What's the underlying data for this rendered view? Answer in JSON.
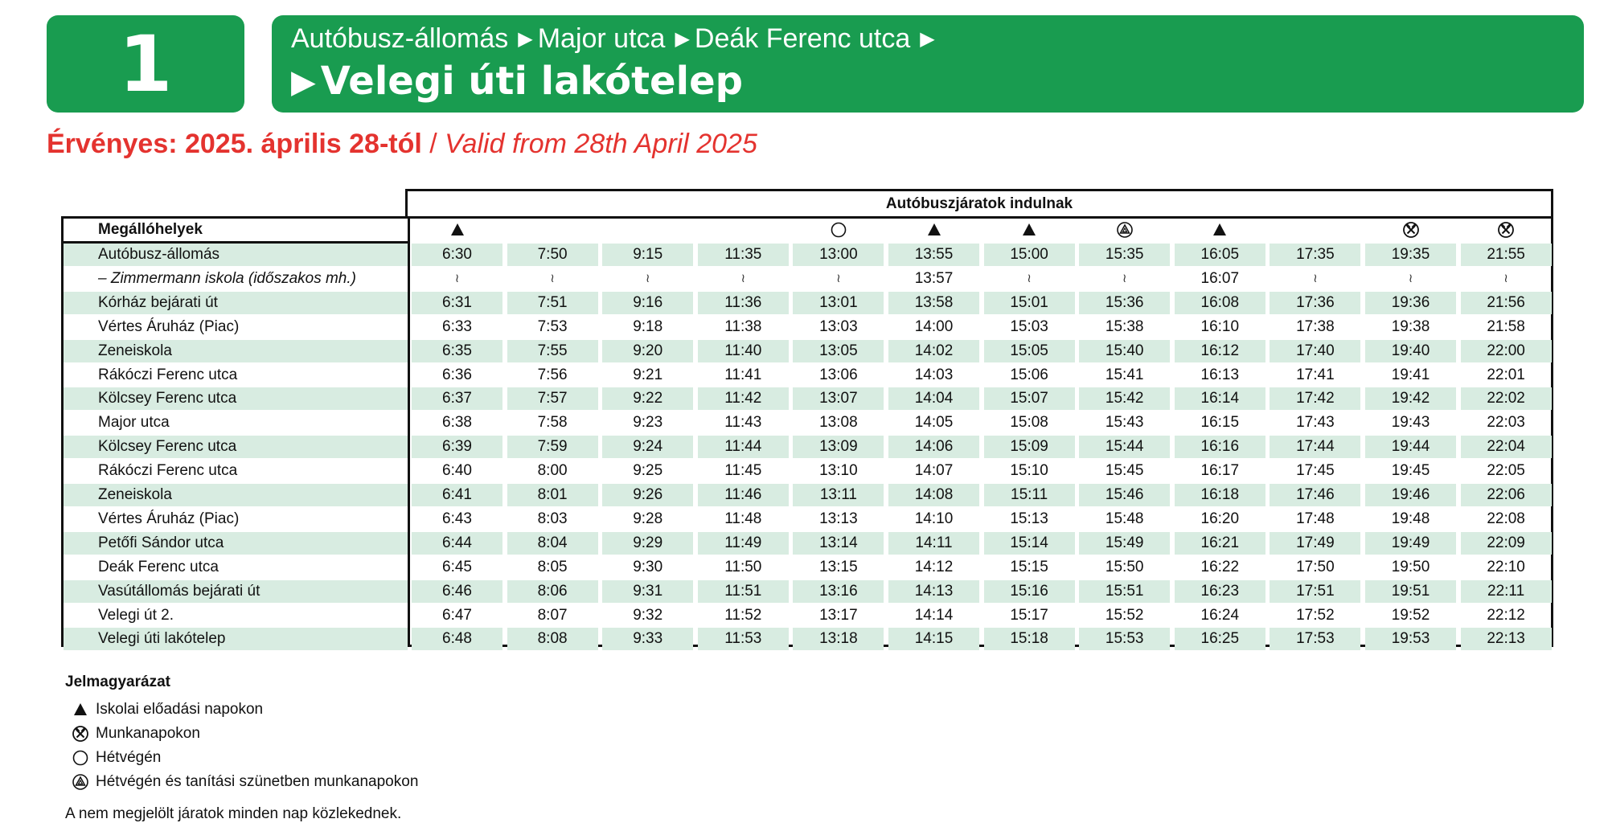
{
  "route_number": "1",
  "route": {
    "stops_via": [
      "Autóbusz-állomás",
      "Major utca",
      "Deák Ferenc utca"
    ],
    "destination": "Velegi úti lakótelep"
  },
  "validity": {
    "hu": "Érvényes: 2025. április 28-tól",
    "separator": " / ",
    "en": "Valid from 28th April 2025"
  },
  "table": {
    "departures_header": "Autóbuszjáratok indulnak",
    "stops_header": "Megállóhelyek",
    "column_symbols": [
      "triangle",
      "",
      "",
      "",
      "circle",
      "triangle",
      "triangle",
      "circle-triangle",
      "triangle",
      "",
      "hammers",
      "hammers"
    ],
    "skip_glyph": "≀",
    "rows": [
      {
        "stop": "Autóbusz-állomás",
        "times": [
          "6:30",
          "7:50",
          "9:15",
          "11:35",
          "13:00",
          "13:55",
          "15:00",
          "15:35",
          "16:05",
          "17:35",
          "19:35",
          "21:55"
        ]
      },
      {
        "stop": "–   Zimmermann iskola (időszakos mh.)",
        "optional": true,
        "times": [
          "",
          "",
          "",
          "",
          "",
          "13:57",
          "",
          "",
          "16:07",
          "",
          "",
          ""
        ]
      },
      {
        "stop": "Kórház bejárati út",
        "times": [
          "6:31",
          "7:51",
          "9:16",
          "11:36",
          "13:01",
          "13:58",
          "15:01",
          "15:36",
          "16:08",
          "17:36",
          "19:36",
          "21:56"
        ]
      },
      {
        "stop": "Vértes Áruház (Piac)",
        "times": [
          "6:33",
          "7:53",
          "9:18",
          "11:38",
          "13:03",
          "14:00",
          "15:03",
          "15:38",
          "16:10",
          "17:38",
          "19:38",
          "21:58"
        ]
      },
      {
        "stop": "Zeneiskola",
        "times": [
          "6:35",
          "7:55",
          "9:20",
          "11:40",
          "13:05",
          "14:02",
          "15:05",
          "15:40",
          "16:12",
          "17:40",
          "19:40",
          "22:00"
        ]
      },
      {
        "stop": "Rákóczi Ferenc utca",
        "times": [
          "6:36",
          "7:56",
          "9:21",
          "11:41",
          "13:06",
          "14:03",
          "15:06",
          "15:41",
          "16:13",
          "17:41",
          "19:41",
          "22:01"
        ]
      },
      {
        "stop": "Kölcsey Ferenc utca",
        "times": [
          "6:37",
          "7:57",
          "9:22",
          "11:42",
          "13:07",
          "14:04",
          "15:07",
          "15:42",
          "16:14",
          "17:42",
          "19:42",
          "22:02"
        ]
      },
      {
        "stop": "Major utca",
        "times": [
          "6:38",
          "7:58",
          "9:23",
          "11:43",
          "13:08",
          "14:05",
          "15:08",
          "15:43",
          "16:15",
          "17:43",
          "19:43",
          "22:03"
        ]
      },
      {
        "stop": "Kölcsey Ferenc utca",
        "times": [
          "6:39",
          "7:59",
          "9:24",
          "11:44",
          "13:09",
          "14:06",
          "15:09",
          "15:44",
          "16:16",
          "17:44",
          "19:44",
          "22:04"
        ]
      },
      {
        "stop": "Rákóczi Ferenc utca",
        "times": [
          "6:40",
          "8:00",
          "9:25",
          "11:45",
          "13:10",
          "14:07",
          "15:10",
          "15:45",
          "16:17",
          "17:45",
          "19:45",
          "22:05"
        ]
      },
      {
        "stop": "Zeneiskola",
        "times": [
          "6:41",
          "8:01",
          "9:26",
          "11:46",
          "13:11",
          "14:08",
          "15:11",
          "15:46",
          "16:18",
          "17:46",
          "19:46",
          "22:06"
        ]
      },
      {
        "stop": "Vértes Áruház (Piac)",
        "times": [
          "6:43",
          "8:03",
          "9:28",
          "11:48",
          "13:13",
          "14:10",
          "15:13",
          "15:48",
          "16:20",
          "17:48",
          "19:48",
          "22:08"
        ]
      },
      {
        "stop": "Petőfi Sándor utca",
        "times": [
          "6:44",
          "8:04",
          "9:29",
          "11:49",
          "13:14",
          "14:11",
          "15:14",
          "15:49",
          "16:21",
          "17:49",
          "19:49",
          "22:09"
        ]
      },
      {
        "stop": "Deák Ferenc utca",
        "times": [
          "6:45",
          "8:05",
          "9:30",
          "11:50",
          "13:15",
          "14:12",
          "15:15",
          "15:50",
          "16:22",
          "17:50",
          "19:50",
          "22:10"
        ]
      },
      {
        "stop": "Vasútállomás bejárati út",
        "times": [
          "6:46",
          "8:06",
          "9:31",
          "11:51",
          "13:16",
          "14:13",
          "15:16",
          "15:51",
          "16:23",
          "17:51",
          "19:51",
          "22:11"
        ]
      },
      {
        "stop": "Velegi út 2.",
        "times": [
          "6:47",
          "8:07",
          "9:32",
          "11:52",
          "13:17",
          "14:14",
          "15:17",
          "15:52",
          "16:24",
          "17:52",
          "19:52",
          "22:12"
        ]
      },
      {
        "stop": "Velegi úti lakótelep",
        "times": [
          "6:48",
          "8:08",
          "9:33",
          "11:53",
          "13:18",
          "14:15",
          "15:18",
          "15:53",
          "16:25",
          "17:53",
          "19:53",
          "22:13"
        ]
      }
    ]
  },
  "legend": {
    "title": "Jelmagyarázat",
    "items": [
      {
        "icon": "triangle",
        "text": "Iskolai előadási napokon"
      },
      {
        "icon": "hammers",
        "text": "Munkanapokon"
      },
      {
        "icon": "circle",
        "text": "Hétvégén"
      },
      {
        "icon": "circle-triangle",
        "text": "Hétvégén és tanítási szünetben munkanapokon"
      }
    ],
    "note": "A nem megjelölt járatok minden nap közlekednek."
  },
  "colors": {
    "brand_green": "#199c50",
    "validity_red": "#e4332f",
    "row_shade": "#d8ece1"
  }
}
